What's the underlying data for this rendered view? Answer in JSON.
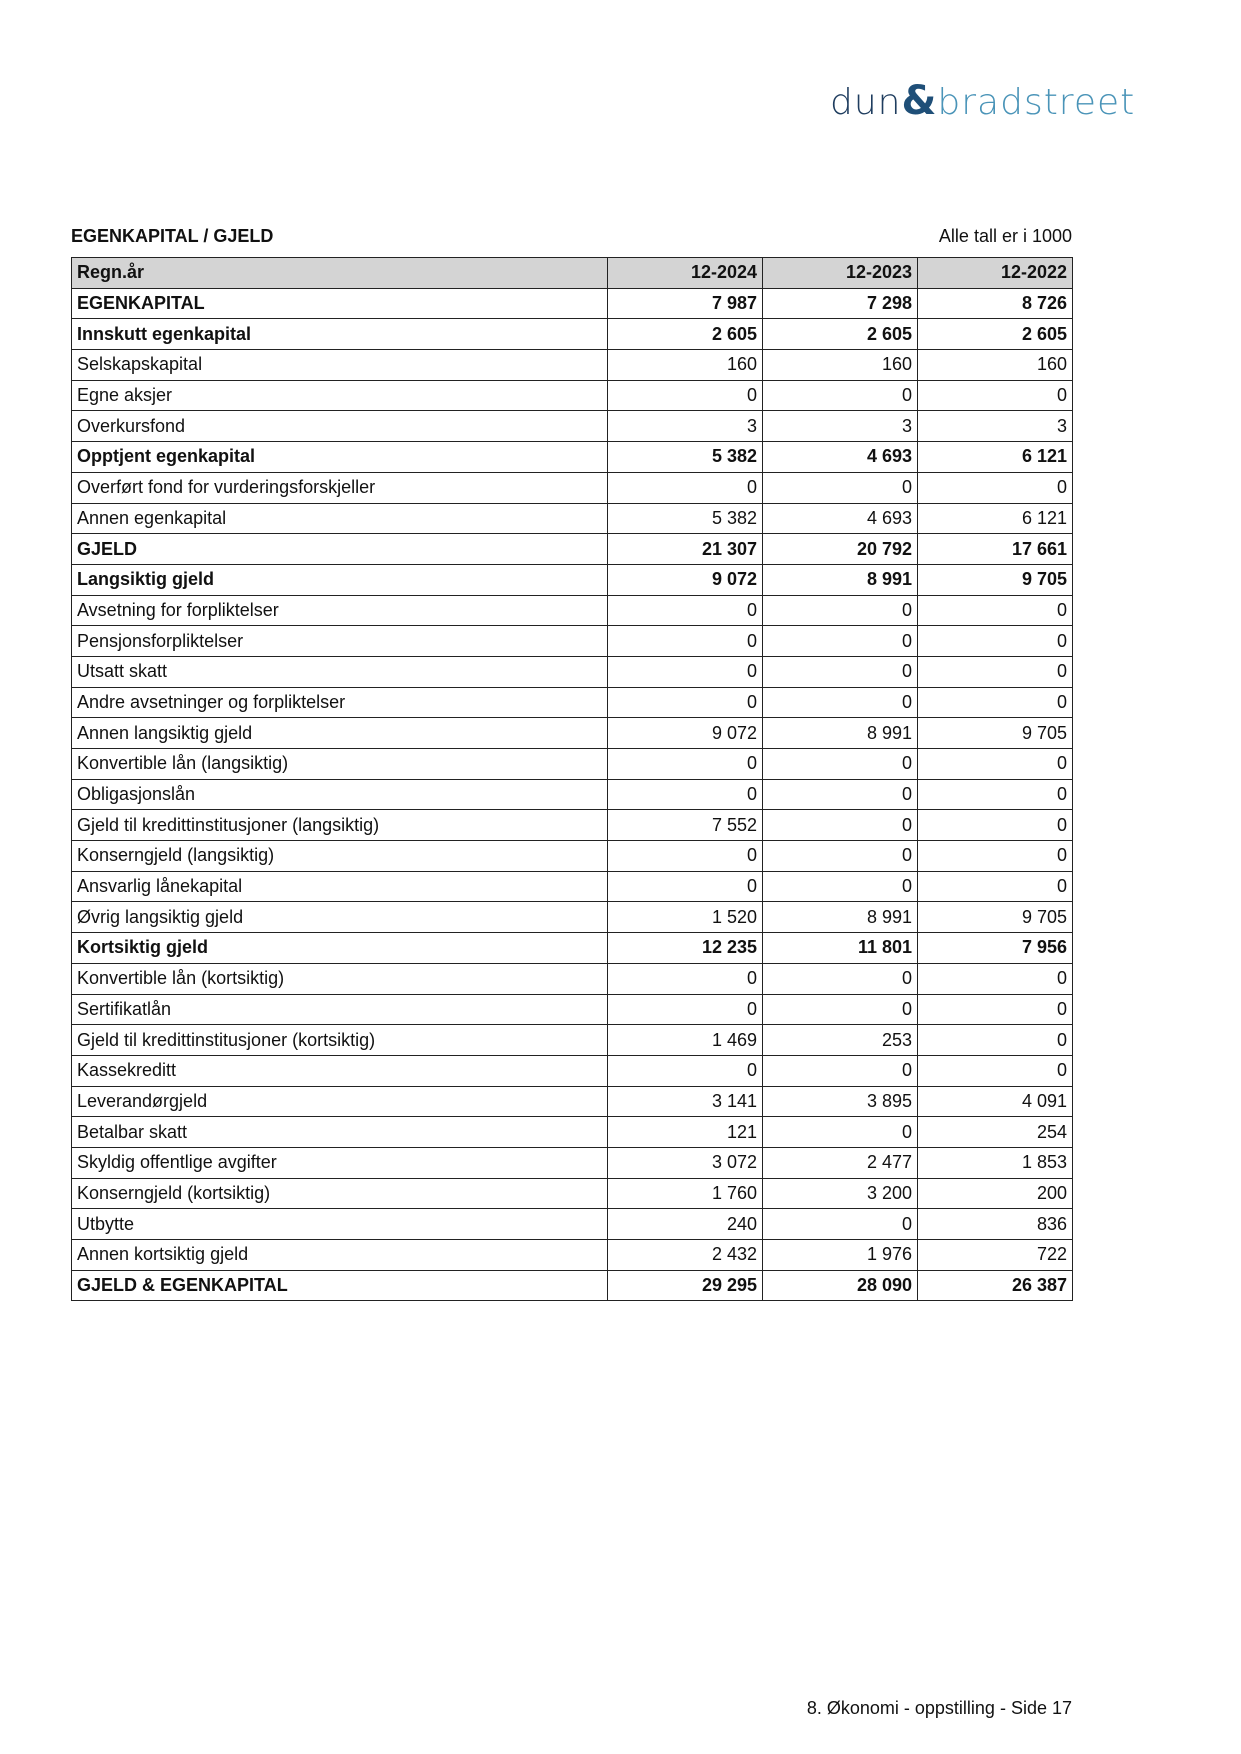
{
  "logo": {
    "part1": "dun",
    "amp": "&",
    "part2": "bradstreet"
  },
  "section_title": "EGENKAPITAL / GJELD",
  "unit_note": "Alle tall er i 1000",
  "table": {
    "headers": [
      "Regn.år",
      "12-2024",
      "12-2023",
      "12-2022"
    ],
    "rows": [
      {
        "label": "EGENKAPITAL",
        "bold": true,
        "values": [
          "7 987",
          "7 298",
          "8 726"
        ]
      },
      {
        "label": "Innskutt egenkapital",
        "bold": true,
        "values": [
          "2 605",
          "2 605",
          "2 605"
        ]
      },
      {
        "label": "Selskapskapital",
        "bold": false,
        "values": [
          "160",
          "160",
          "160"
        ]
      },
      {
        "label": "Egne aksjer",
        "bold": false,
        "values": [
          "0",
          "0",
          "0"
        ]
      },
      {
        "label": "Overkursfond",
        "bold": false,
        "values": [
          "3",
          "3",
          "3"
        ]
      },
      {
        "label": "Opptjent egenkapital",
        "bold": true,
        "values": [
          "5 382",
          "4 693",
          "6 121"
        ]
      },
      {
        "label": "Overført fond for vurderingsforskjeller",
        "bold": false,
        "values": [
          "0",
          "0",
          "0"
        ]
      },
      {
        "label": "Annen egenkapital",
        "bold": false,
        "values": [
          "5 382",
          "4 693",
          "6 121"
        ]
      },
      {
        "label": "GJELD",
        "bold": true,
        "values": [
          "21 307",
          "20 792",
          "17 661"
        ]
      },
      {
        "label": "Langsiktig gjeld",
        "bold": true,
        "values": [
          "9 072",
          "8 991",
          "9 705"
        ]
      },
      {
        "label": "Avsetning for forpliktelser",
        "bold": false,
        "values": [
          "0",
          "0",
          "0"
        ]
      },
      {
        "label": "Pensjonsforpliktelser",
        "bold": false,
        "values": [
          "0",
          "0",
          "0"
        ]
      },
      {
        "label": "Utsatt skatt",
        "bold": false,
        "values": [
          "0",
          "0",
          "0"
        ]
      },
      {
        "label": "Andre avsetninger og forpliktelser",
        "bold": false,
        "values": [
          "0",
          "0",
          "0"
        ]
      },
      {
        "label": "Annen langsiktig gjeld",
        "bold": false,
        "values": [
          "9 072",
          "8 991",
          "9 705"
        ]
      },
      {
        "label": "Konvertible lån (langsiktig)",
        "bold": false,
        "values": [
          "0",
          "0",
          "0"
        ]
      },
      {
        "label": "Obligasjonslån",
        "bold": false,
        "values": [
          "0",
          "0",
          "0"
        ]
      },
      {
        "label": "Gjeld til kredittinstitusjoner (langsiktig)",
        "bold": false,
        "values": [
          "7 552",
          "0",
          "0"
        ]
      },
      {
        "label": "Konserngjeld (langsiktig)",
        "bold": false,
        "values": [
          "0",
          "0",
          "0"
        ]
      },
      {
        "label": "Ansvarlig lånekapital",
        "bold": false,
        "values": [
          "0",
          "0",
          "0"
        ]
      },
      {
        "label": "Øvrig langsiktig gjeld",
        "bold": false,
        "values": [
          "1 520",
          "8 991",
          "9 705"
        ]
      },
      {
        "label": "Kortsiktig gjeld",
        "bold": true,
        "values": [
          "12 235",
          "11 801",
          "7 956"
        ]
      },
      {
        "label": "Konvertible lån (kortsiktig)",
        "bold": false,
        "values": [
          "0",
          "0",
          "0"
        ]
      },
      {
        "label": "Sertifikatlån",
        "bold": false,
        "values": [
          "0",
          "0",
          "0"
        ]
      },
      {
        "label": "Gjeld til kredittinstitusjoner (kortsiktig)",
        "bold": false,
        "values": [
          "1 469",
          "253",
          "0"
        ]
      },
      {
        "label": "Kassekreditt",
        "bold": false,
        "values": [
          "0",
          "0",
          "0"
        ]
      },
      {
        "label": "Leverandørgjeld",
        "bold": false,
        "values": [
          "3 141",
          "3 895",
          "4 091"
        ]
      },
      {
        "label": "Betalbar skatt",
        "bold": false,
        "values": [
          "121",
          "0",
          "254"
        ]
      },
      {
        "label": "Skyldig offentlige avgifter",
        "bold": false,
        "values": [
          "3 072",
          "2 477",
          "1 853"
        ]
      },
      {
        "label": "Konserngjeld (kortsiktig)",
        "bold": false,
        "values": [
          "1 760",
          "3 200",
          "200"
        ]
      },
      {
        "label": "Utbytte",
        "bold": false,
        "values": [
          "240",
          "0",
          "836"
        ]
      },
      {
        "label": "Annen kortsiktig gjeld",
        "bold": false,
        "values": [
          "2 432",
          "1 976",
          "722"
        ]
      },
      {
        "label": "GJELD & EGENKAPITAL",
        "bold": true,
        "values": [
          "29 295",
          "28 090",
          "26 387"
        ]
      }
    ]
  },
  "footer": "8. Økonomi - oppstilling - Side 17"
}
